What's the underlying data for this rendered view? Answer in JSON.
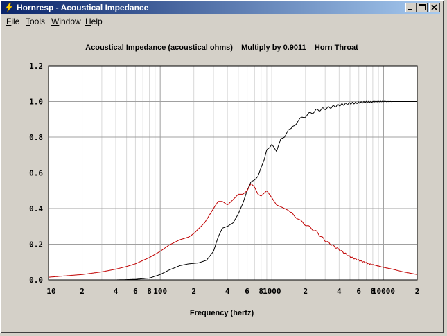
{
  "window": {
    "title": "Hornresp - Acoustical Impedance",
    "icon": "lightning-bolt-icon"
  },
  "menu": {
    "file": {
      "first": "F",
      "rest": "ile"
    },
    "tools": {
      "first": "T",
      "rest": "ools"
    },
    "window": {
      "first": "W",
      "rest": "indow"
    },
    "help": {
      "first": "H",
      "rest": "elp"
    }
  },
  "chart_data": {
    "type": "line",
    "title": "Acoustical Impedance (acoustical ohms)    Multiply by 0.9011    Horn Throat",
    "xlabel": "Frequency (hertz)",
    "ylabel": "",
    "xscale": "log",
    "xlim": [
      10,
      20000
    ],
    "ylim": [
      0,
      1.2
    ],
    "grid": true,
    "legend": "none",
    "x_tick_labels": [
      "10",
      "2",
      "4",
      "6",
      "8",
      "100",
      "2",
      "4",
      "6",
      "8",
      "1000",
      "2",
      "4",
      "6",
      "8",
      "10000",
      "2"
    ],
    "y_tick_labels": [
      "1.2",
      "1.0",
      "0.8",
      "0.6",
      "0.4",
      "0.2",
      "0.0"
    ],
    "series": [
      {
        "color": "#000000",
        "points": [
          [
            40,
            0
          ],
          [
            60,
            0.003
          ],
          [
            80,
            0.01
          ],
          [
            100,
            0.03
          ],
          [
            120,
            0.055
          ],
          [
            150,
            0.08
          ],
          [
            180,
            0.09
          ],
          [
            220,
            0.095
          ],
          [
            260,
            0.11
          ],
          [
            300,
            0.16
          ],
          [
            330,
            0.24
          ],
          [
            360,
            0.29
          ],
          [
            400,
            0.3
          ],
          [
            450,
            0.32
          ],
          [
            500,
            0.37
          ],
          [
            550,
            0.43
          ],
          [
            600,
            0.5
          ],
          [
            650,
            0.55
          ],
          [
            700,
            0.56
          ],
          [
            750,
            0.58
          ],
          [
            800,
            0.63
          ],
          [
            850,
            0.67
          ],
          [
            900,
            0.73
          ],
          [
            950,
            0.74
          ],
          [
            1000,
            0.76
          ],
          [
            1100,
            0.72
          ],
          [
            1200,
            0.79
          ],
          [
            1300,
            0.8
          ],
          [
            1400,
            0.84
          ],
          [
            1500,
            0.85
          ],
          [
            1700,
            0.89
          ],
          [
            2000,
            0.92
          ],
          [
            2500,
            0.95
          ],
          [
            3000,
            0.96
          ],
          [
            4000,
            0.98
          ],
          [
            5000,
            0.99
          ],
          [
            7000,
            0.997
          ],
          [
            10000,
            1.0
          ],
          [
            20000,
            1.0
          ]
        ]
      },
      {
        "color": "#c00000",
        "points": [
          [
            10,
            0.015
          ],
          [
            20,
            0.03
          ],
          [
            30,
            0.045
          ],
          [
            40,
            0.06
          ],
          [
            50,
            0.075
          ],
          [
            60,
            0.09
          ],
          [
            80,
            0.125
          ],
          [
            100,
            0.16
          ],
          [
            120,
            0.195
          ],
          [
            150,
            0.225
          ],
          [
            180,
            0.24
          ],
          [
            200,
            0.26
          ],
          [
            250,
            0.32
          ],
          [
            300,
            0.4
          ],
          [
            330,
            0.44
          ],
          [
            360,
            0.44
          ],
          [
            400,
            0.42
          ],
          [
            450,
            0.45
          ],
          [
            500,
            0.48
          ],
          [
            550,
            0.48
          ],
          [
            600,
            0.5
          ],
          [
            650,
            0.54
          ],
          [
            700,
            0.52
          ],
          [
            750,
            0.48
          ],
          [
            800,
            0.47
          ],
          [
            900,
            0.5
          ],
          [
            1000,
            0.46
          ],
          [
            1100,
            0.42
          ],
          [
            1200,
            0.41
          ],
          [
            1400,
            0.39
          ],
          [
            1600,
            0.36
          ],
          [
            1800,
            0.33
          ],
          [
            2000,
            0.31
          ],
          [
            2500,
            0.27
          ],
          [
            3000,
            0.22
          ],
          [
            4000,
            0.17
          ],
          [
            5000,
            0.13
          ],
          [
            6000,
            0.11
          ],
          [
            7000,
            0.095
          ],
          [
            8000,
            0.085
          ],
          [
            10000,
            0.07
          ],
          [
            12000,
            0.06
          ],
          [
            15000,
            0.045
          ],
          [
            20000,
            0.03
          ]
        ]
      }
    ]
  }
}
